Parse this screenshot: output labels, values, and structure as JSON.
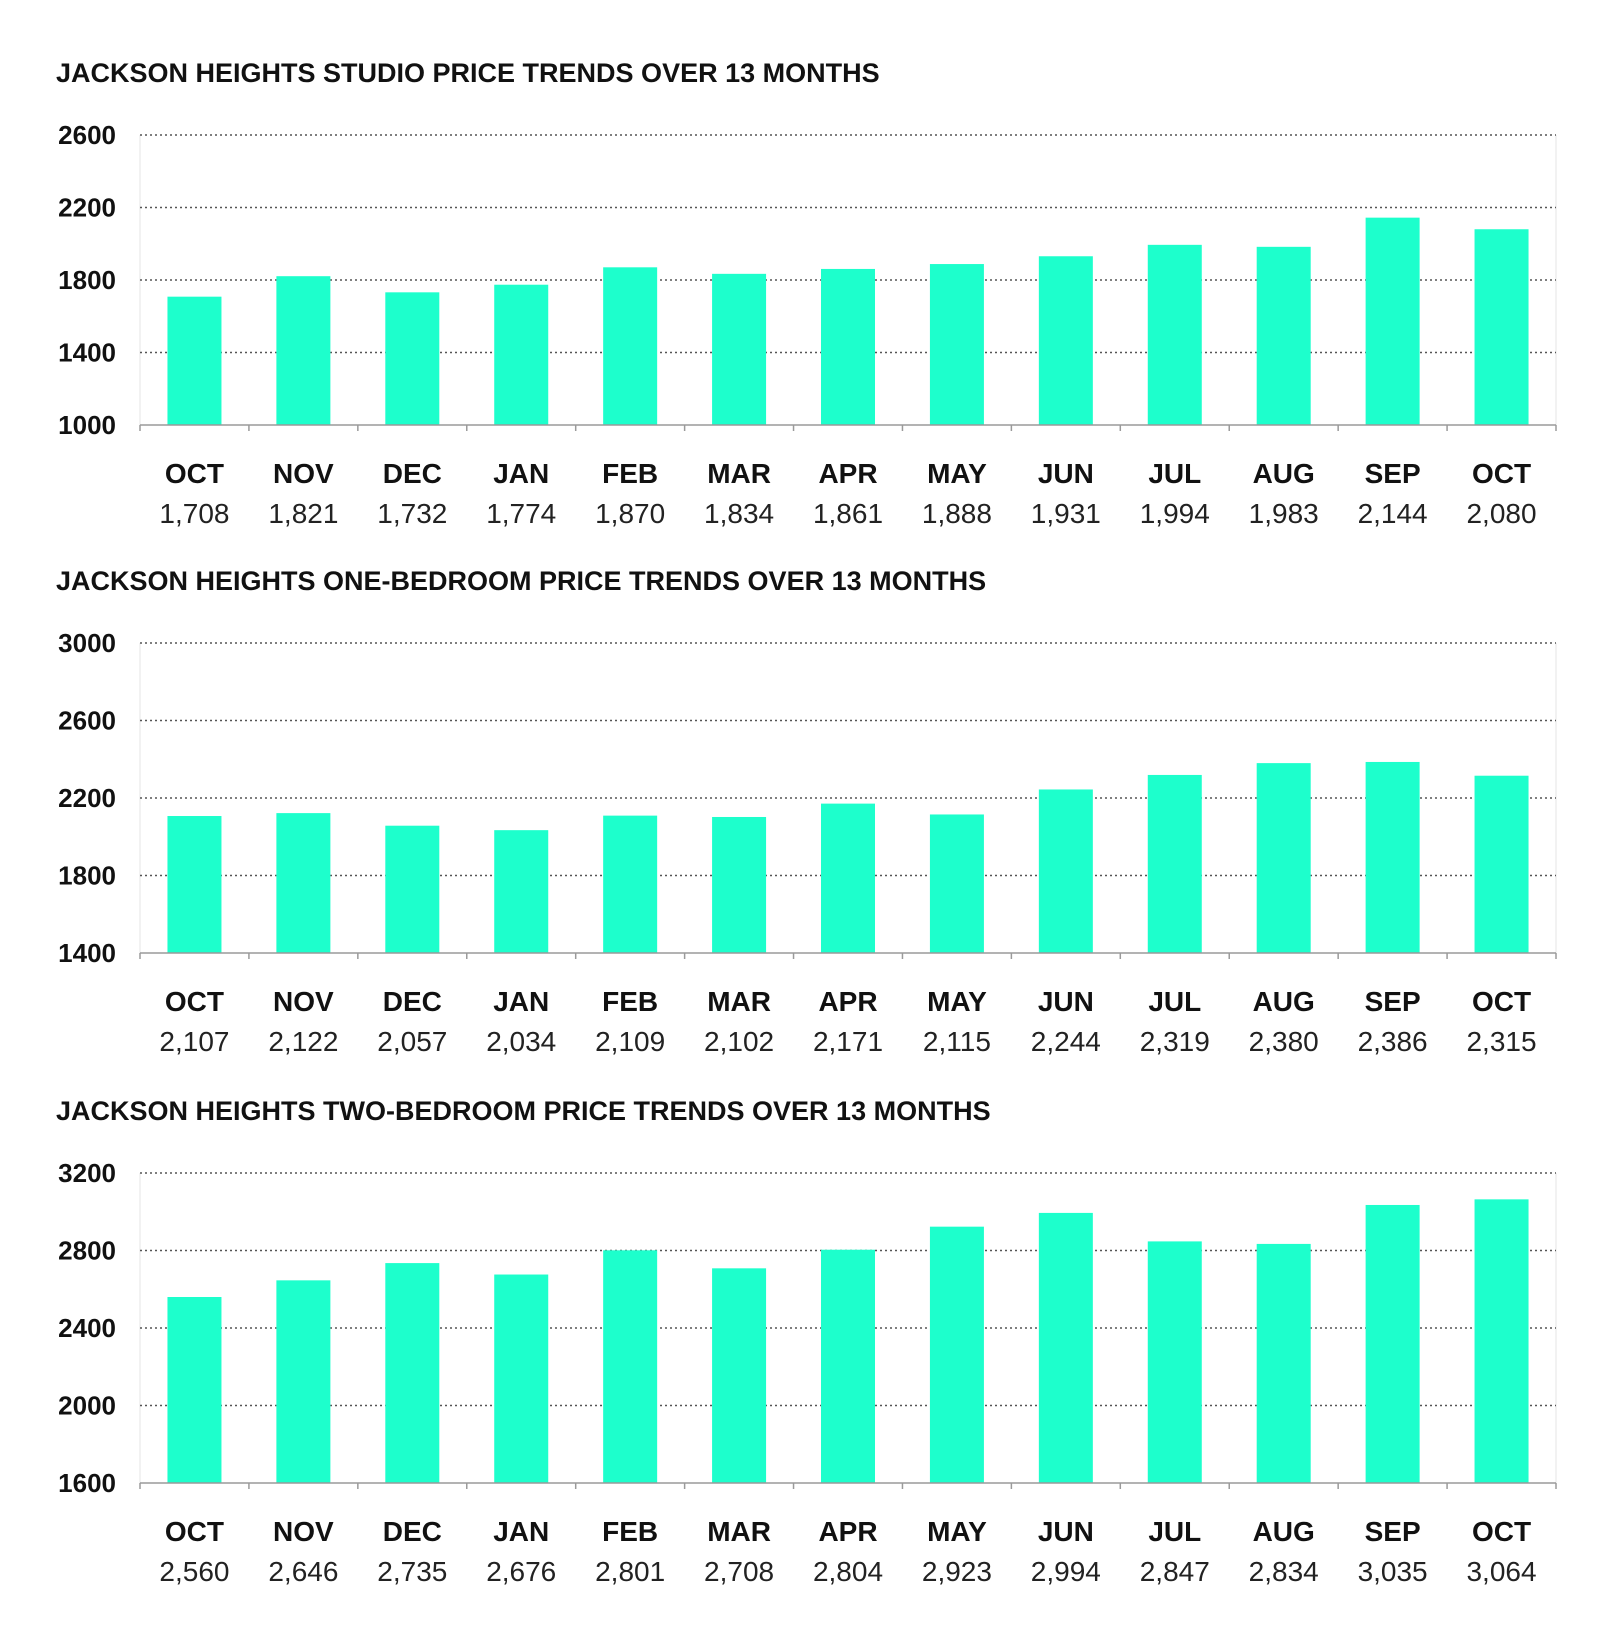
{
  "chart_data": [
    {
      "type": "bar",
      "title": "JACKSON HEIGHTS STUDIO PRICE TRENDS OVER 13 MONTHS",
      "categories": [
        "OCT",
        "NOV",
        "DEC",
        "JAN",
        "FEB",
        "MAR",
        "APR",
        "MAY",
        "JUN",
        "JUL",
        "AUG",
        "SEP",
        "OCT"
      ],
      "values": [
        1708,
        1821,
        1732,
        1774,
        1870,
        1834,
        1861,
        1888,
        1931,
        1994,
        1983,
        2144,
        2080
      ],
      "value_labels": [
        "1,708",
        "1,821",
        "1,732",
        "1,774",
        "1,870",
        "1,834",
        "1,861",
        "1,888",
        "1,931",
        "1,994",
        "1,983",
        "2,144",
        "2,080"
      ],
      "ylim": [
        1000,
        2600
      ],
      "yticks": [
        1000,
        1400,
        1800,
        2200,
        2600
      ],
      "grid": true,
      "bar_color": "#1dffcc"
    },
    {
      "type": "bar",
      "title": "JACKSON HEIGHTS ONE-BEDROOM PRICE TRENDS OVER 13 MONTHS",
      "categories": [
        "OCT",
        "NOV",
        "DEC",
        "JAN",
        "FEB",
        "MAR",
        "APR",
        "MAY",
        "JUN",
        "JUL",
        "AUG",
        "SEP",
        "OCT"
      ],
      "values": [
        2107,
        2122,
        2057,
        2034,
        2109,
        2102,
        2171,
        2115,
        2244,
        2319,
        2380,
        2386,
        2315
      ],
      "value_labels": [
        "2,107",
        "2,122",
        "2,057",
        "2,034",
        "2,109",
        "2,102",
        "2,171",
        "2,115",
        "2,244",
        "2,319",
        "2,380",
        "2,386",
        "2,315"
      ],
      "ylim": [
        1400,
        3000
      ],
      "yticks": [
        1400,
        1800,
        2200,
        2600,
        3000
      ],
      "grid": true,
      "bar_color": "#1dffcc"
    },
    {
      "type": "bar",
      "title": "JACKSON HEIGHTS TWO-BEDROOM PRICE TRENDS OVER 13 MONTHS",
      "categories": [
        "OCT",
        "NOV",
        "DEC",
        "JAN",
        "FEB",
        "MAR",
        "APR",
        "MAY",
        "JUN",
        "JUL",
        "AUG",
        "SEP",
        "OCT"
      ],
      "values": [
        2560,
        2646,
        2735,
        2676,
        2801,
        2708,
        2804,
        2923,
        2994,
        2847,
        2834,
        3035,
        3064
      ],
      "value_labels": [
        "2,560",
        "2,646",
        "2,735",
        "2,676",
        "2,801",
        "2,708",
        "2,804",
        "2,923",
        "2,994",
        "2,847",
        "2,834",
        "3,035",
        "3,064"
      ],
      "ylim": [
        1600,
        3200
      ],
      "yticks": [
        1600,
        2000,
        2400,
        2800,
        3200
      ],
      "grid": true,
      "bar_color": "#1dffcc"
    }
  ]
}
